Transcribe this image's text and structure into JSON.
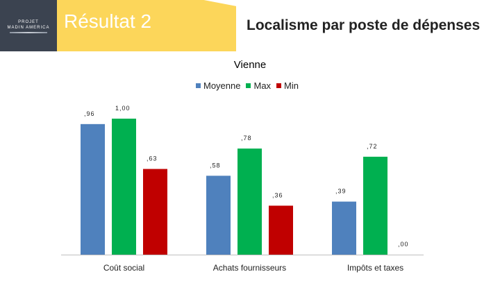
{
  "header": {
    "logo_line1": "PROJET",
    "logo_line2": "MADIN AMERICA",
    "result_label": "Résultat 2",
    "title": "Localisme par poste de dépenses"
  },
  "colors": {
    "logo_bg": "#3b4350",
    "band": "#fcd65a",
    "moyenne": "#4f81bd",
    "max": "#00b050",
    "min": "#c00000"
  },
  "chart_data": {
    "type": "bar",
    "title": "Vienne",
    "categories": [
      "Coût social",
      "Achats fournisseurs",
      "Impôts et taxes"
    ],
    "series": [
      {
        "name": "Moyenne",
        "color": "#4f81bd",
        "values": [
          0.96,
          0.58,
          0.39
        ],
        "labels": [
          ",96",
          ",58",
          ",39"
        ]
      },
      {
        "name": "Max",
        "color": "#00b050",
        "values": [
          1.0,
          0.78,
          0.72
        ],
        "labels": [
          "1,00",
          ",78",
          ",72"
        ]
      },
      {
        "name": "Min",
        "color": "#c00000",
        "values": [
          0.63,
          0.36,
          0.0
        ],
        "labels": [
          ",63",
          ",36",
          ",00"
        ]
      }
    ],
    "ylim": [
      0,
      1.1
    ],
    "grid": false,
    "legend": "top"
  }
}
